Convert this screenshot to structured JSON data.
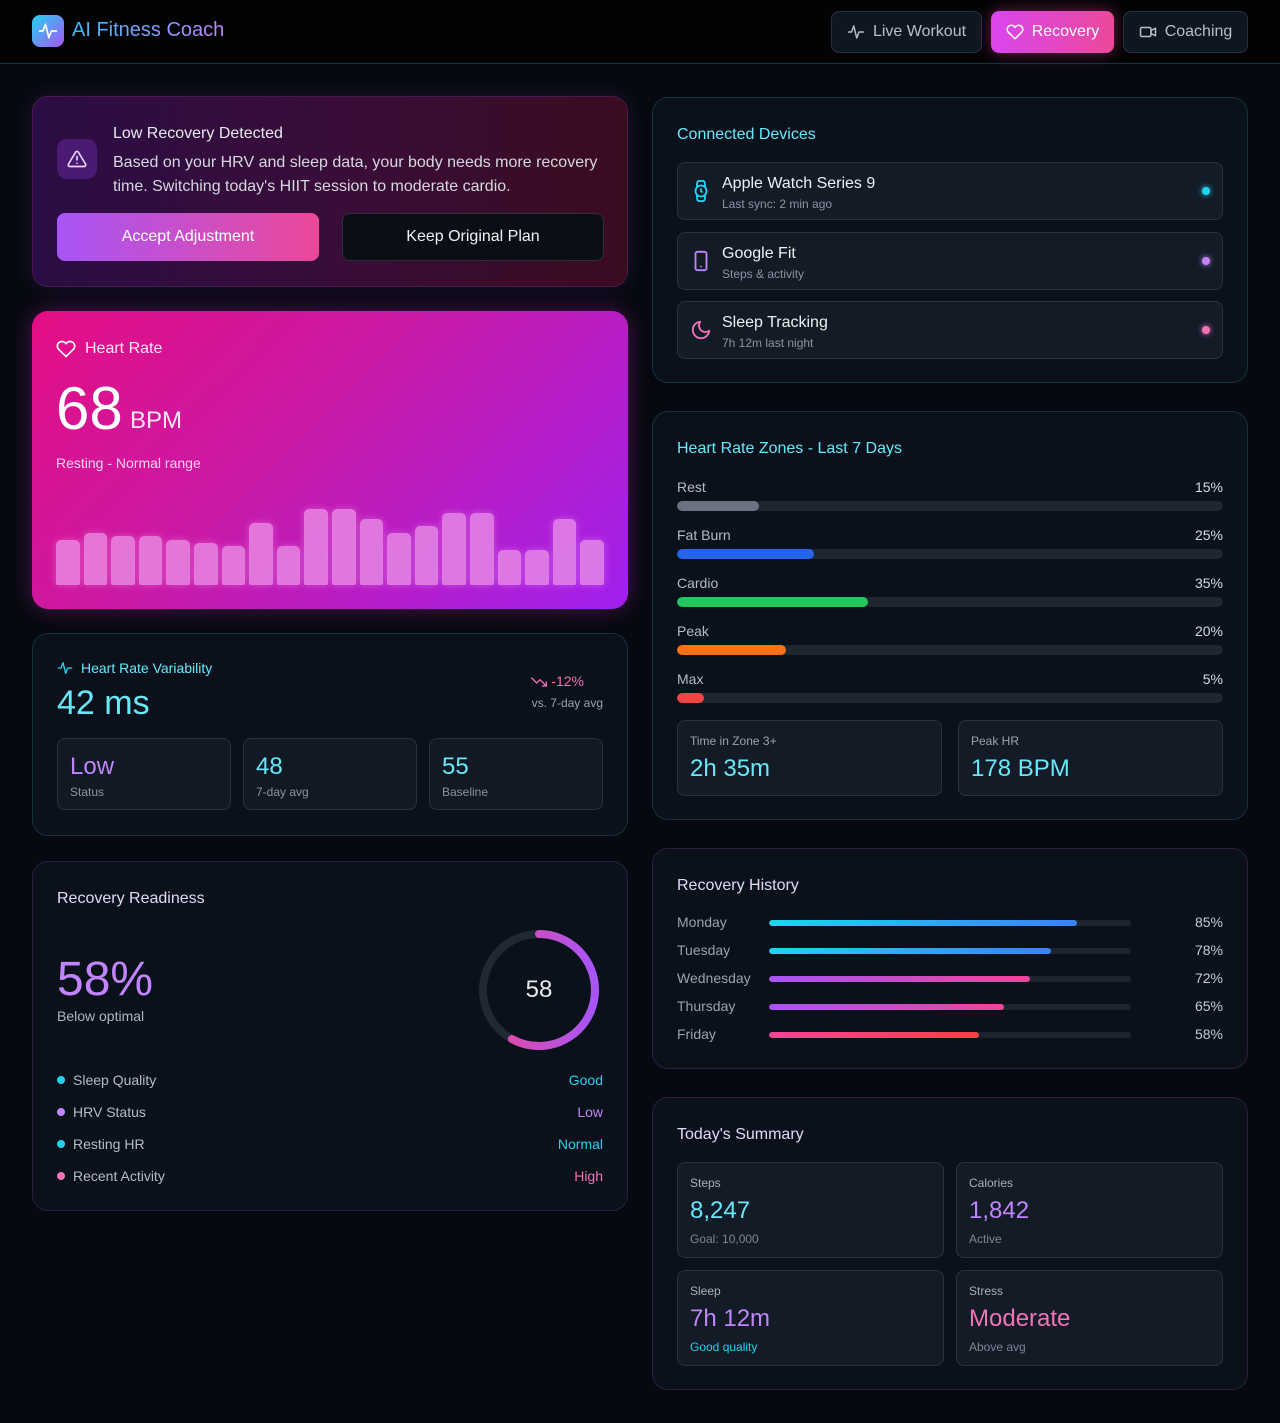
{
  "app": {
    "title": "AI Fitness Coach"
  },
  "nav": [
    {
      "label": "Live Workout",
      "icon": "activity-icon",
      "active": false
    },
    {
      "label": "Recovery",
      "icon": "heart-icon",
      "active": true
    },
    {
      "label": "Coaching",
      "icon": "video-icon",
      "active": false
    }
  ],
  "alert": {
    "title": "Low Recovery Detected",
    "message": "Based on your HRV and sleep data, your body needs more recovery time. Switching today's HIIT session to moderate cardio.",
    "accept_label": "Accept Adjustment",
    "keep_label": "Keep Original Plan",
    "icon": "warning-icon"
  },
  "heart_rate": {
    "title": "Heart Rate",
    "value": "68",
    "unit": "BPM",
    "status": "Resting - Normal range",
    "trend_bars": [
      66,
      68,
      67,
      67,
      66,
      65,
      64,
      71,
      64,
      75,
      75,
      72,
      68,
      70,
      74,
      74,
      63,
      63,
      72,
      66
    ]
  },
  "hrv": {
    "title": "Heart Rate Variability",
    "value": "42 ms",
    "change": "-12%",
    "change_caption": "vs. 7-day avg",
    "stats": [
      {
        "value": "Low",
        "label": "Status"
      },
      {
        "value": "48",
        "label": "7-day avg"
      },
      {
        "value": "55",
        "label": "Baseline"
      }
    ]
  },
  "readiness": {
    "title": "Recovery Readiness",
    "value": "58%",
    "status": "Below optimal",
    "ring_value": "58",
    "ring_fraction": 0.58,
    "factors": [
      {
        "name": "Sleep Quality",
        "value": "Good",
        "color": "#22d3ee"
      },
      {
        "name": "HRV Status",
        "value": "Low",
        "color": "#c084fc"
      },
      {
        "name": "Resting HR",
        "value": "Normal",
        "color": "#22d3ee"
      },
      {
        "name": "Recent Activity",
        "value": "High",
        "color": "#f472b6"
      }
    ]
  },
  "devices": {
    "title": "Connected Devices",
    "items": [
      {
        "name": "Apple Watch Series 9",
        "sub": "Last sync: 2 min ago",
        "icon": "watch-icon",
        "color": "#22d3ee"
      },
      {
        "name": "Google Fit",
        "sub": "Steps & activity",
        "icon": "phone-icon",
        "color": "#c084fc"
      },
      {
        "name": "Sleep Tracking",
        "sub": "7h 12m last night",
        "icon": "moon-icon",
        "color": "#f472b6"
      }
    ]
  },
  "zones": {
    "title": "Heart Rate Zones - Last 7 Days",
    "items": [
      {
        "name": "Rest",
        "pct": "15%",
        "value": 15,
        "color": "#6b7280"
      },
      {
        "name": "Fat Burn",
        "pct": "25%",
        "value": 25,
        "color": "#2563eb"
      },
      {
        "name": "Cardio",
        "pct": "35%",
        "value": 35,
        "color": "#22c55e"
      },
      {
        "name": "Peak",
        "pct": "20%",
        "value": 20,
        "color": "#f97316"
      },
      {
        "name": "Max",
        "pct": "5%",
        "value": 5,
        "color": "#ef4444"
      }
    ],
    "time_in_zone_label": "Time in Zone 3+",
    "time_in_zone_value": "2h 35m",
    "peak_hr_label": "Peak HR",
    "peak_hr_value": "178 BPM"
  },
  "history": {
    "title": "Recovery History",
    "items": [
      {
        "day": "Monday",
        "pct": "85%",
        "value": 85
      },
      {
        "day": "Tuesday",
        "pct": "78%",
        "value": 78
      },
      {
        "day": "Wednesday",
        "pct": "72%",
        "value": 72
      },
      {
        "day": "Thursday",
        "pct": "65%",
        "value": 65
      },
      {
        "day": "Friday",
        "pct": "58%",
        "value": 58
      }
    ]
  },
  "summary": {
    "title": "Today's Summary",
    "items": [
      {
        "label": "Steps",
        "value": "8,247",
        "sub": "Goal: 10,000"
      },
      {
        "label": "Calories",
        "value": "1,842",
        "sub": "Active"
      },
      {
        "label": "Sleep",
        "value": "7h 12m",
        "sub": "Good quality"
      },
      {
        "label": "Stress",
        "value": "Moderate",
        "sub": "Above avg"
      }
    ]
  }
}
